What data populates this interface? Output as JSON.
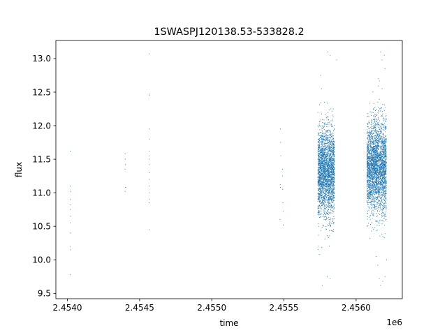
{
  "chart_data": {
    "type": "scatter",
    "title": "1SWASPJ120138.53-533828.2",
    "xlabel": "time",
    "ylabel": "flux",
    "x_offset_label": "1e6",
    "xlim": [
      2453820,
      2456220
    ],
    "ylim": [
      9.42,
      13.27
    ],
    "x_ticks": [
      2453900,
      2454400,
      2454900,
      2455400,
      2455900
    ],
    "x_tick_labels": [
      "2.4540",
      "2.4545",
      "2.4550",
      "2.4555",
      "2.4560"
    ],
    "y_ticks": [
      9.5,
      10.0,
      10.5,
      11.0,
      11.5,
      12.0,
      12.5,
      13.0
    ],
    "y_tick_labels": [
      "9.5",
      "10.0",
      "10.5",
      "11.0",
      "11.5",
      "12.0",
      "12.5",
      "13.0"
    ],
    "grid": false,
    "legend": "none",
    "marker_color": "#1f77b4",
    "series": [
      {
        "values": [
          [
            2453920,
            11.62
          ],
          [
            2453920,
            11.1
          ],
          [
            2453920,
            11.02
          ],
          [
            2453920,
            10.9
          ],
          [
            2453921,
            10.82
          ],
          [
            2453921,
            10.75
          ],
          [
            2453921,
            10.65
          ],
          [
            2453920,
            10.55
          ],
          [
            2453921,
            10.4
          ],
          [
            2453920,
            10.2
          ],
          [
            2453921,
            10.15
          ],
          [
            2453920,
            9.78
          ],
          [
            2454300,
            11.58
          ],
          [
            2454300,
            11.5
          ],
          [
            2454301,
            11.42
          ],
          [
            2454300,
            11.35
          ],
          [
            2454301,
            11.08
          ],
          [
            2454300,
            11.02
          ],
          [
            2454467,
            13.07
          ],
          [
            2454466,
            12.47
          ],
          [
            2454467,
            12.45
          ],
          [
            2454466,
            11.95
          ],
          [
            2454467,
            11.8
          ],
          [
            2454466,
            11.62
          ],
          [
            2454467,
            11.55
          ],
          [
            2454466,
            11.5
          ],
          [
            2454467,
            11.42
          ],
          [
            2454466,
            11.3
          ],
          [
            2454467,
            11.2
          ],
          [
            2454466,
            11.1
          ],
          [
            2454467,
            11.0
          ],
          [
            2454466,
            10.9
          ],
          [
            2454467,
            10.85
          ],
          [
            2454466,
            10.45
          ],
          [
            2455375,
            11.95
          ],
          [
            2455377,
            11.75
          ],
          [
            2455378,
            11.55
          ],
          [
            2455374,
            11.12
          ],
          [
            2455376,
            11.08
          ],
          [
            2455373,
            10.6
          ],
          [
            2455390,
            11.35
          ],
          [
            2455391,
            11.25
          ],
          [
            2455392,
            11.05
          ],
          [
            2455393,
            10.85
          ],
          [
            2455394,
            10.72
          ],
          [
            2455395,
            10.52
          ],
          [
            2455655,
            12.75
          ],
          [
            2455705,
            13.1
          ],
          [
            2455720,
            13.05
          ],
          [
            2455765,
            12.98
          ],
          [
            2455640,
            11.98
          ],
          [
            2455645,
            10.08
          ],
          [
            2455665,
            9.62
          ],
          [
            2455700,
            9.75
          ],
          [
            2455720,
            9.72
          ],
          [
            2455660,
            12.55
          ],
          [
            2455680,
            12.35
          ],
          [
            2455725,
            12.25
          ],
          [
            2456070,
            13.1
          ],
          [
            2456095,
            13.05
          ],
          [
            2456080,
            12.98
          ],
          [
            2456100,
            12.85
          ],
          [
            2456055,
            12.7
          ],
          [
            2456080,
            12.55
          ],
          [
            2456050,
            12.35
          ],
          [
            2456040,
            10.05
          ],
          [
            2456050,
            9.92
          ],
          [
            2456060,
            9.72
          ],
          [
            2456070,
            9.62
          ],
          [
            2456085,
            9.68
          ],
          [
            2456100,
            9.75
          ],
          [
            2456110,
            10.0
          ],
          [
            2456020,
            12.25
          ],
          [
            2456010,
            10.55
          ]
        ]
      }
    ],
    "dense_clusters": [
      {
        "x_range": [
          2455635,
          2455750
        ],
        "y_mean": 11.3,
        "y_std": 0.33,
        "points": 2600
      },
      {
        "x_range": [
          2455975,
          2456110
        ],
        "y_mean": 11.38,
        "y_std": 0.34,
        "points": 3000
      }
    ]
  }
}
